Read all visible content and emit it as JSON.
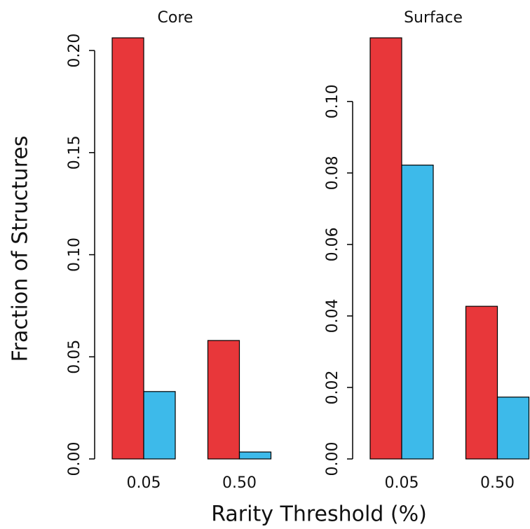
{
  "ylabel": "Fraction of Structures",
  "xlabel": "Rarity Threshold (%)",
  "chart_data": [
    {
      "type": "bar",
      "title": "Core",
      "categories": [
        "0.05",
        "0.50"
      ],
      "series": [
        {
          "color": "#e8373a",
          "values": [
            0.2062,
            0.058
          ]
        },
        {
          "color": "#3dbaea",
          "values": [
            0.033,
            0.0034
          ]
        }
      ],
      "ylim": [
        0,
        0.2062
      ],
      "yticks": [
        {
          "value": 0,
          "label": "0.00"
        },
        0.05,
        {
          "value": 0.1,
          "label": "0.10"
        },
        0.15,
        {
          "value": 0.2,
          "label": "0.20"
        }
      ]
    },
    {
      "type": "bar",
      "title": "Surface",
      "categories": [
        "0.05",
        "0.50"
      ],
      "series": [
        {
          "color": "#e8373a",
          "values": [
            0.1178,
            0.0427
          ]
        },
        {
          "color": "#3dbaea",
          "values": [
            0.0822,
            0.0173
          ]
        }
      ],
      "ylim": [
        0,
        0.1178
      ],
      "yticks": [
        {
          "value": 0,
          "label": "0.00"
        },
        0.02,
        0.04,
        0.06,
        0.08,
        {
          "value": 0.1,
          "label": "0.10"
        }
      ]
    }
  ]
}
